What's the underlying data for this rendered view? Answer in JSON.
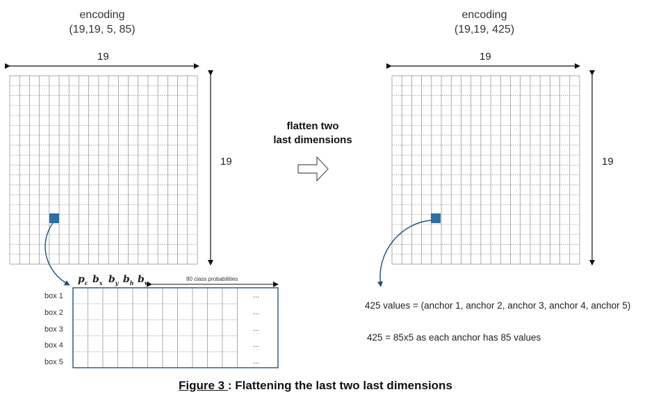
{
  "left": {
    "encoding_label": "encoding",
    "encoding_shape": "(19,19, 5, 85)",
    "width_label": "19",
    "height_label": "19"
  },
  "middle": {
    "line1": "flatten two",
    "line2": "last dimensions"
  },
  "right": {
    "encoding_label": "encoding",
    "encoding_shape": "(19,19, 425)",
    "width_label": "19",
    "height_label": "19",
    "note1": "425 values = (anchor 1, anchor 2, anchor 3, anchor 4, anchor 5)",
    "note2": "425 = 85x5 as each anchor has 85 values"
  },
  "detail": {
    "params": [
      {
        "base": "p",
        "sub": "c"
      },
      {
        "base": "b",
        "sub": "x"
      },
      {
        "base": "b",
        "sub": "y"
      },
      {
        "base": "b",
        "sub": "h"
      },
      {
        "base": "b",
        "sub": "w"
      }
    ],
    "class_label": "80 class probabilities",
    "rows": [
      "box 1",
      "box 2",
      "box 3",
      "box 4",
      "box 5"
    ],
    "ellipsis": "..."
  },
  "caption": {
    "figure": "Figure 3 ",
    "text": ": Flattening the last two last dimensions"
  },
  "colors": {
    "cell_highlight": "#2e6fa3",
    "grid_line": "#8a8a8a",
    "detail_border": "#2b5d86",
    "arrow_curve": "#1f4e79"
  }
}
